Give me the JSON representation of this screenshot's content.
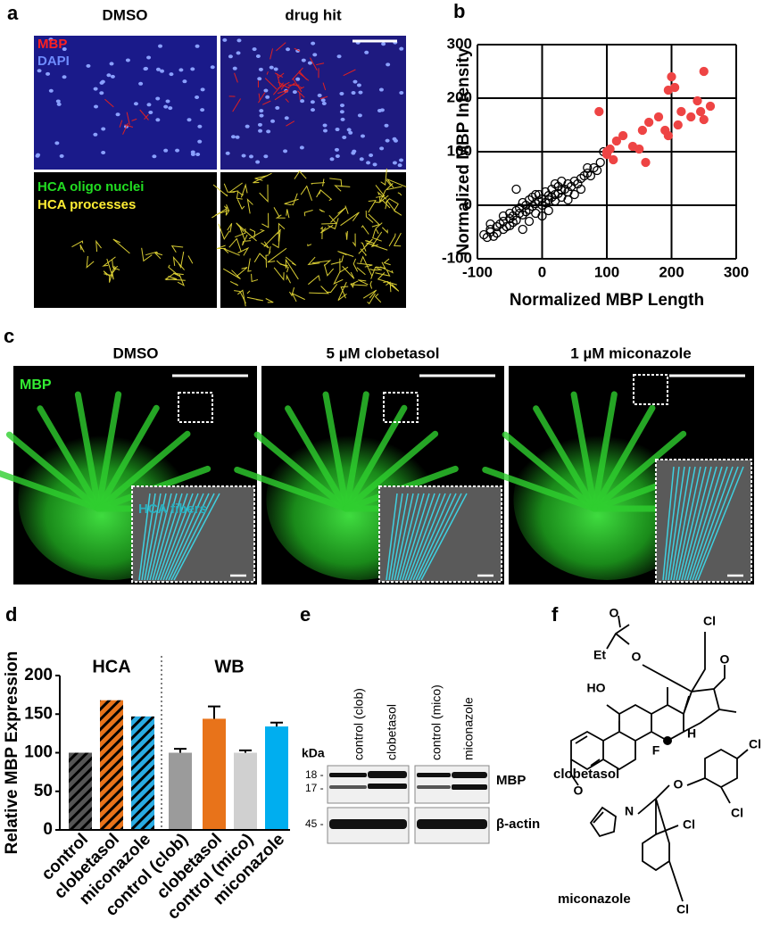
{
  "panel_labels": [
    "a",
    "b",
    "c",
    "d",
    "e",
    "f"
  ],
  "panel_a": {
    "columns": [
      "DMSO",
      "drug hit"
    ],
    "legend_top": [
      "MBP",
      "DAPI"
    ],
    "legend_bottom": [
      "HCA oligo nuclei",
      "HCA processes"
    ]
  },
  "panel_c": {
    "columns": [
      "DMSO",
      "5 µM clobetasol",
      "1 µM miconazole"
    ],
    "stain": "MBP",
    "inset_label": "HCA fibers"
  },
  "panel_e": {
    "lanes": [
      "control (clob)",
      "clobetasol",
      "control (mico)",
      "miconazole"
    ],
    "unit": "kDa",
    "markers": [
      "18 -",
      "17 -",
      "45 -"
    ],
    "bands": [
      "MBP",
      "β-actin"
    ]
  },
  "panel_f": {
    "compounds": [
      "clobetasol",
      "miconazole"
    ],
    "atoms": [
      "O",
      "O",
      "Cl",
      "Et",
      "O",
      "HO",
      "F",
      "H",
      "O",
      "Cl",
      "O",
      "Cl",
      "N",
      "Cl",
      "Cl"
    ]
  },
  "chart_data": [
    {
      "type": "scatter",
      "xlabel": "Normalized MBP Length",
      "ylabel": "Normalized MBP Intensity",
      "xlim": [
        -100,
        300
      ],
      "ylim": [
        -100,
        300
      ],
      "xticks": [
        -100,
        0,
        100,
        200,
        300
      ],
      "yticks": [
        -100,
        0,
        100,
        200,
        300
      ],
      "grid": true,
      "series": [
        {
          "color": "#000000",
          "filled": false,
          "x": [
            -90,
            -85,
            -80,
            -80,
            -75,
            -70,
            -70,
            -65,
            -60,
            -60,
            -55,
            -50,
            -50,
            -45,
            -45,
            -40,
            -40,
            -35,
            -35,
            -30,
            -30,
            -25,
            -25,
            -20,
            -20,
            -15,
            -15,
            -10,
            -10,
            -5,
            -5,
            0,
            0,
            5,
            5,
            10,
            10,
            15,
            15,
            20,
            20,
            25,
            25,
            30,
            30,
            35,
            40,
            40,
            45,
            50,
            55,
            60,
            60,
            65,
            70,
            75,
            80,
            85,
            90,
            95,
            -80,
            -60,
            -40,
            -20,
            0,
            20,
            40,
            -50,
            -30,
            -10,
            10,
            30,
            50,
            70
          ],
          "y": [
            -55,
            -60,
            -50,
            -45,
            -58,
            -40,
            -52,
            -35,
            -45,
            -30,
            -40,
            -25,
            -38,
            -20,
            -32,
            -10,
            -28,
            -15,
            -5,
            -18,
            5,
            -12,
            0,
            -8,
            10,
            -2,
            15,
            3,
            -15,
            8,
            20,
            0,
            12,
            5,
            25,
            10,
            18,
            15,
            30,
            20,
            8,
            22,
            35,
            28,
            15,
            30,
            40,
            25,
            35,
            45,
            40,
            50,
            30,
            55,
            60,
            55,
            70,
            65,
            80,
            100,
            -35,
            -20,
            30,
            -30,
            -20,
            40,
            10,
            -15,
            -45,
            20,
            -10,
            45,
            20,
            70
          ]
        },
        {
          "color": "#ee4444",
          "filled": true,
          "x": [
            88,
            100,
            100,
            105,
            110,
            115,
            125,
            140,
            150,
            155,
            160,
            165,
            180,
            190,
            195,
            195,
            200,
            205,
            210,
            215,
            230,
            240,
            245,
            250,
            250,
            260
          ],
          "y": [
            175,
            100,
            95,
            105,
            85,
            120,
            130,
            110,
            105,
            140,
            80,
            155,
            165,
            140,
            130,
            215,
            240,
            220,
            150,
            175,
            165,
            195,
            175,
            250,
            160,
            185
          ]
        }
      ]
    },
    {
      "type": "bar",
      "ylabel": "Relative MBP Expression",
      "group_labels": [
        "HCA",
        "WB"
      ],
      "categories": [
        "control",
        "clobetasol",
        "miconazole",
        "control (clob)",
        "clobetasol",
        "control (mico)",
        "miconazole"
      ],
      "values": [
        100,
        168,
        147,
        100,
        144,
        100,
        134
      ],
      "errors": [
        null,
        null,
        null,
        5,
        16,
        3,
        5
      ],
      "colors": [
        "#555555",
        "#e8731a",
        "#29abe2",
        "#9b9b9b",
        "#e8731a",
        "#d0d0d0",
        "#00aeef"
      ],
      "hatched": [
        true,
        true,
        true,
        false,
        false,
        false,
        false
      ],
      "ylim": [
        0,
        200
      ],
      "yticks": [
        0,
        50,
        100,
        150,
        200
      ]
    }
  ]
}
